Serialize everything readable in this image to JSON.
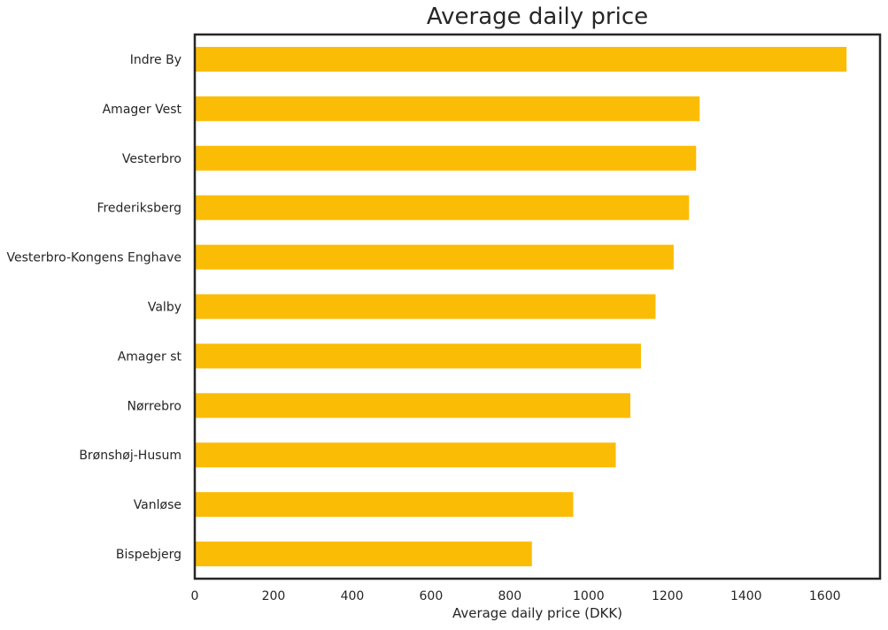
{
  "chart_data": {
    "type": "bar",
    "orientation": "horizontal",
    "title": "Average daily price",
    "xlabel": "Average daily price (DKK)",
    "ylabel": "",
    "categories": [
      "Indre By",
      "Amager Vest",
      "Vesterbro",
      "Frederiksberg",
      "Vesterbro-Kongens Enghave",
      "Valby",
      "Amager st",
      "Nørrebro",
      "Brønshøj-Husum",
      "Vanløse",
      "Bispebjerg"
    ],
    "values": [
      1655,
      1282,
      1273,
      1255,
      1216,
      1170,
      1133,
      1106,
      1069,
      961,
      856
    ],
    "xlim": [
      0,
      1740
    ],
    "xticks": [
      "0",
      "200",
      "400",
      "600",
      "800",
      "1000",
      "1200",
      "1400",
      "1600"
    ],
    "bar_color": "#fbbc05",
    "grid": false,
    "legend": "none"
  }
}
